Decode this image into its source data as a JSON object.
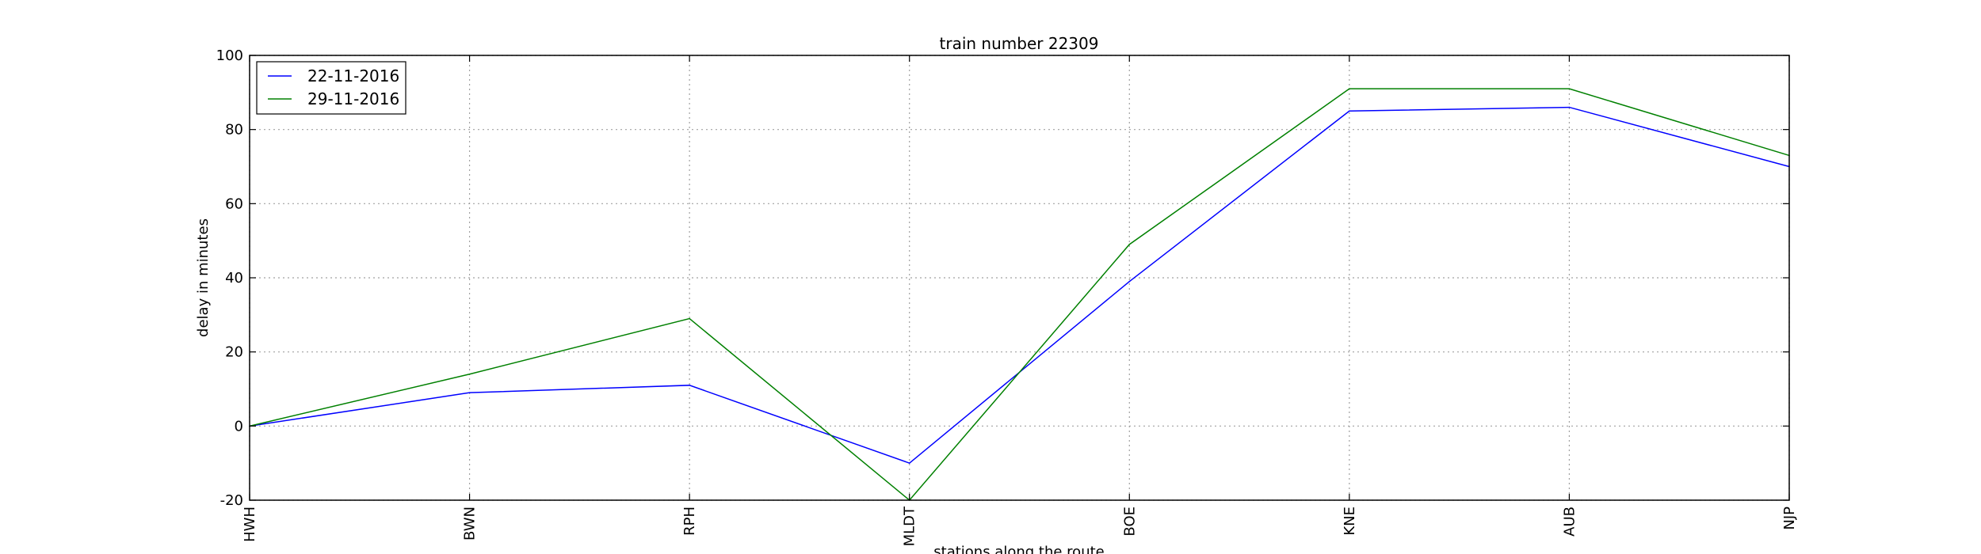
{
  "chart_data": {
    "type": "line",
    "title": "train number 22309",
    "xlabel": "stations along the route",
    "ylabel": "delay in minutes",
    "categories": [
      "HWH",
      "BWN",
      "RPH",
      "MLDT",
      "BOE",
      "KNE",
      "AUB",
      "NJP"
    ],
    "ylim": [
      -20,
      100
    ],
    "yticks": [
      -20,
      0,
      20,
      40,
      60,
      80,
      100
    ],
    "grid": true,
    "legend_position": "top-left",
    "series": [
      {
        "name": "22-11-2016",
        "color": "#0000ff",
        "values": [
          0,
          9,
          11,
          -10,
          39,
          85,
          86,
          70
        ]
      },
      {
        "name": "29-11-2016",
        "color": "#008000",
        "values": [
          0,
          14,
          29,
          -20,
          49,
          91,
          91,
          73
        ]
      }
    ]
  }
}
